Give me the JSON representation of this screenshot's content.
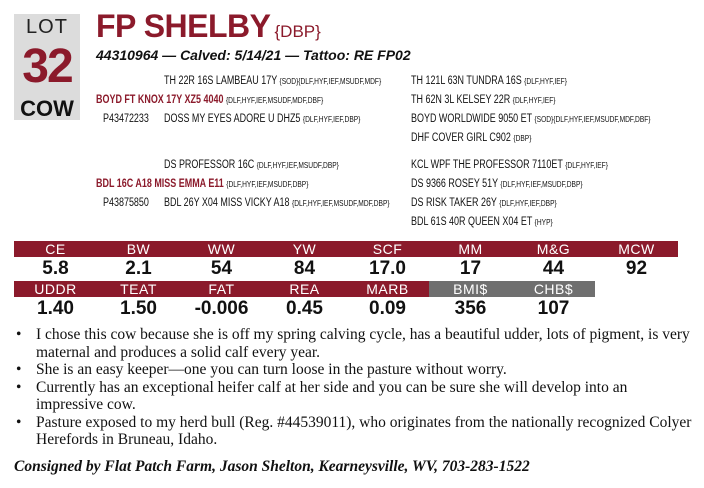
{
  "lot": {
    "label": "LOT",
    "number": "32",
    "sex": "COW"
  },
  "animal": {
    "name": "FP SHELBY",
    "registry": "{DBP}",
    "subline": "44310964 — Calved: 5/14/21 — Tattoo: RE FP02"
  },
  "pedigree": [
    {
      "text": "TH 22R 16S LAMBEAU 17Y",
      "marks": "{SOD}{DLF,HYF,IEF,MSUDF,MDF}"
    },
    {
      "text": "TH 121L 63N TUNDRA 16S",
      "marks": "{DLF,HYF,IEF}"
    },
    {
      "text": "BOYD FT KNOX 17Y XZ5 4040",
      "marks": "{DLF,HYF,IEF,MSUDF,MDF,DBF}"
    },
    {
      "text": "TH 62N 3L KELSEY 22R",
      "marks": "{DLF,HYF,IEF}"
    },
    {
      "text": "P43472233",
      "marks": ""
    },
    {
      "text": "DOSS MY EYES ADORE U DHZ5",
      "marks": "{DLF,HYF,IEF,DBP}"
    },
    {
      "text": "BOYD WORLDWIDE 9050 ET",
      "marks": "{SOD}{DLF,HYF,IEF,MSUDF,MDF,DBF}"
    },
    {
      "text": "DHF COVER GIRL C902",
      "marks": "{DBP}"
    },
    {
      "text": "DS PROFESSOR 16C",
      "marks": "{DLF,HYF,IEF,MSUDF,DBP}"
    },
    {
      "text": "KCL WPF THE PROFESSOR 7110ET",
      "marks": "{DLF,HYF,IEF}"
    },
    {
      "text": "BDL 16C A18 MISS EMMA E11",
      "marks": "{DLF,HYF,IEF,MSUDF,DBP}"
    },
    {
      "text": "DS 9366 ROSEY 51Y",
      "marks": "{DLF,HYF,IEF,MSUDF,DBP}"
    },
    {
      "text": "P43875850",
      "marks": ""
    },
    {
      "text": "BDL 26Y X04 MISS VICKY A18",
      "marks": "{DLF,HYF,IEF,MSUDF,MDF,DBP}"
    },
    {
      "text": "DS RISK TAKER 26Y",
      "marks": "{DLF,HYF,IEF,DBP}"
    },
    {
      "text": "BDL 61S 40R QUEEN X04 ET",
      "marks": "{HYP}"
    }
  ],
  "epd_row1": {
    "headers": [
      "CE",
      "BW",
      "WW",
      "YW",
      "SCF",
      "MM",
      "M&G",
      "MCW"
    ],
    "values": [
      "5.8",
      "2.1",
      "54",
      "84",
      "17.0",
      "17",
      "44",
      "92"
    ]
  },
  "epd_row2": {
    "headers": [
      "UDDR",
      "TEAT",
      "FAT",
      "REA",
      "MARB",
      "BMI$",
      "CHB$"
    ],
    "values": [
      "1.40",
      "1.50",
      "-0.006",
      "0.45",
      "0.09",
      "356",
      "107"
    ]
  },
  "colors": {
    "brand": "#8b1a2b",
    "index_header": "#6f6f6f",
    "lot_box": "#dcdcdc"
  },
  "notes": [
    "I chose this cow because she is off my spring calving cycle, has a beautiful udder, lots of pigment, is very maternal and produces a solid calf every year.",
    "She is an easy keeper—one you can turn loose in the pasture without worry.",
    "Currently has an exceptional heifer calf at her side and you can be sure she will develop into an impressive cow.",
    "Pasture exposed to my herd bull (Reg. #44539011), who originates from the nationally recognized Colyer Herefords in Bruneau, Idaho."
  ],
  "consignor": "Consigned by Flat Patch Farm, Jason Shelton, Kearneysville, WV, 703-283-1522"
}
